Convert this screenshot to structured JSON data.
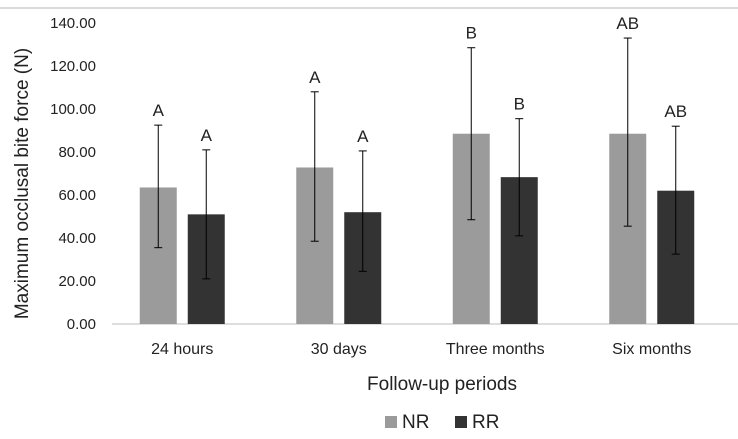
{
  "chart_data": {
    "type": "bar",
    "ylabel": "Maximum occlusal bite force (N)",
    "xlabel": "Follow-up periods",
    "ylim": [
      0,
      140
    ],
    "yticks": [
      "0.00",
      "20.00",
      "40.00",
      "60.00",
      "80.00",
      "100.00",
      "120.00",
      "140.00"
    ],
    "grid": false,
    "legend_position": "bottom-center",
    "categories": [
      "24 hours",
      "30 days",
      "Three months",
      "Six months"
    ],
    "series": [
      {
        "name": "NR",
        "color": "#9b9b9b",
        "values": [
          63.5,
          72.8,
          88.5,
          88.5
        ],
        "error_upper": [
          92.5,
          108.0,
          128.5,
          133.0
        ],
        "error_lower": [
          35.5,
          38.5,
          48.5,
          45.5
        ],
        "letters": [
          "A",
          "A",
          "B",
          "AB"
        ]
      },
      {
        "name": "RR",
        "color": "#333333",
        "values": [
          51.0,
          52.0,
          68.3,
          62.0
        ],
        "error_upper": [
          81.0,
          80.5,
          95.5,
          92.0
        ],
        "error_lower": [
          21.0,
          24.5,
          41.0,
          32.5
        ],
        "letters": [
          "A",
          "A",
          "B",
          "AB"
        ]
      }
    ]
  }
}
